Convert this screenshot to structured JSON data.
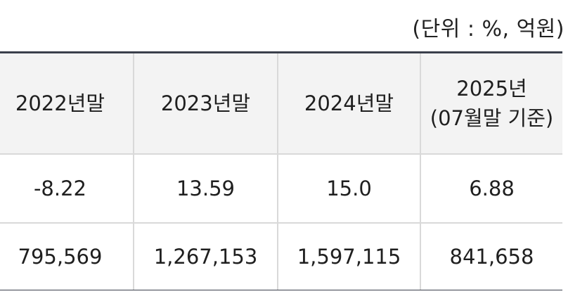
{
  "unit_note": "(단위 : %, 억원)",
  "table": {
    "headers": [
      "2022년말",
      "2023년말",
      "2024년말",
      "2025년\n(07월말 기준)"
    ],
    "header_last_line1": "2025년",
    "header_last_line2": "(07월말 기준)",
    "rows": [
      [
        "-8.22",
        "13.59",
        "15.0",
        "6.88"
      ],
      [
        "795,569",
        "1,267,153",
        "1,597,115",
        "841,658"
      ]
    ]
  }
}
